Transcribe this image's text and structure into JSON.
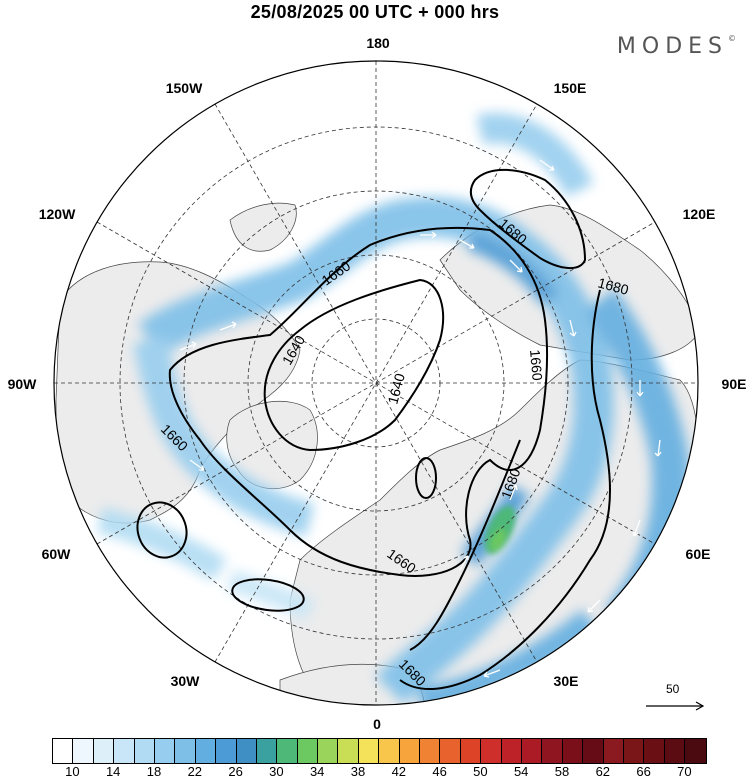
{
  "title": "25/08/2025  00 UTC  + 000 hrs",
  "brand": "MODES",
  "brand_mark": "©",
  "longitude_labels": {
    "top": "180",
    "bottom": "0",
    "left": "90W",
    "right": "90E",
    "upper_left_1": "150W",
    "upper_left_2": "120W",
    "upper_right_1": "150E",
    "upper_right_2": "120E",
    "lower_left_1": "60W",
    "lower_left_2": "30W",
    "lower_right_1": "60E",
    "lower_right_2": "30E"
  },
  "contour_labels": [
    "1660",
    "1640",
    "1640",
    "1660",
    "1660",
    "1680",
    "1680",
    "1660",
    "1680",
    "1680"
  ],
  "reference_vector": {
    "label": "50"
  },
  "colorbar": {
    "colors": [
      "#ffffff",
      "#eef7fd",
      "#ddf0fa",
      "#c8e6f7",
      "#b0dbf3",
      "#97cdee",
      "#7ebfe8",
      "#63aee0",
      "#4d9bd6",
      "#3f8ec4",
      "#3aa0a0",
      "#4eb878",
      "#6cc861",
      "#9bd45a",
      "#c9dd55",
      "#f4e25a",
      "#f8c64a",
      "#f7a43c",
      "#f08233",
      "#e7622c",
      "#dd4427",
      "#cf2f2a",
      "#bd2229",
      "#aa1b25",
      "#8f1520",
      "#7a0f1a",
      "#660c16",
      "#8a1a20",
      "#7a1518",
      "#6a1015",
      "#5a0c12",
      "#4a0a10"
    ],
    "tick_labels": [
      "10",
      "14",
      "18",
      "22",
      "26",
      "30",
      "34",
      "38",
      "42",
      "46",
      "50",
      "54",
      "58",
      "62",
      "66",
      "70"
    ]
  }
}
